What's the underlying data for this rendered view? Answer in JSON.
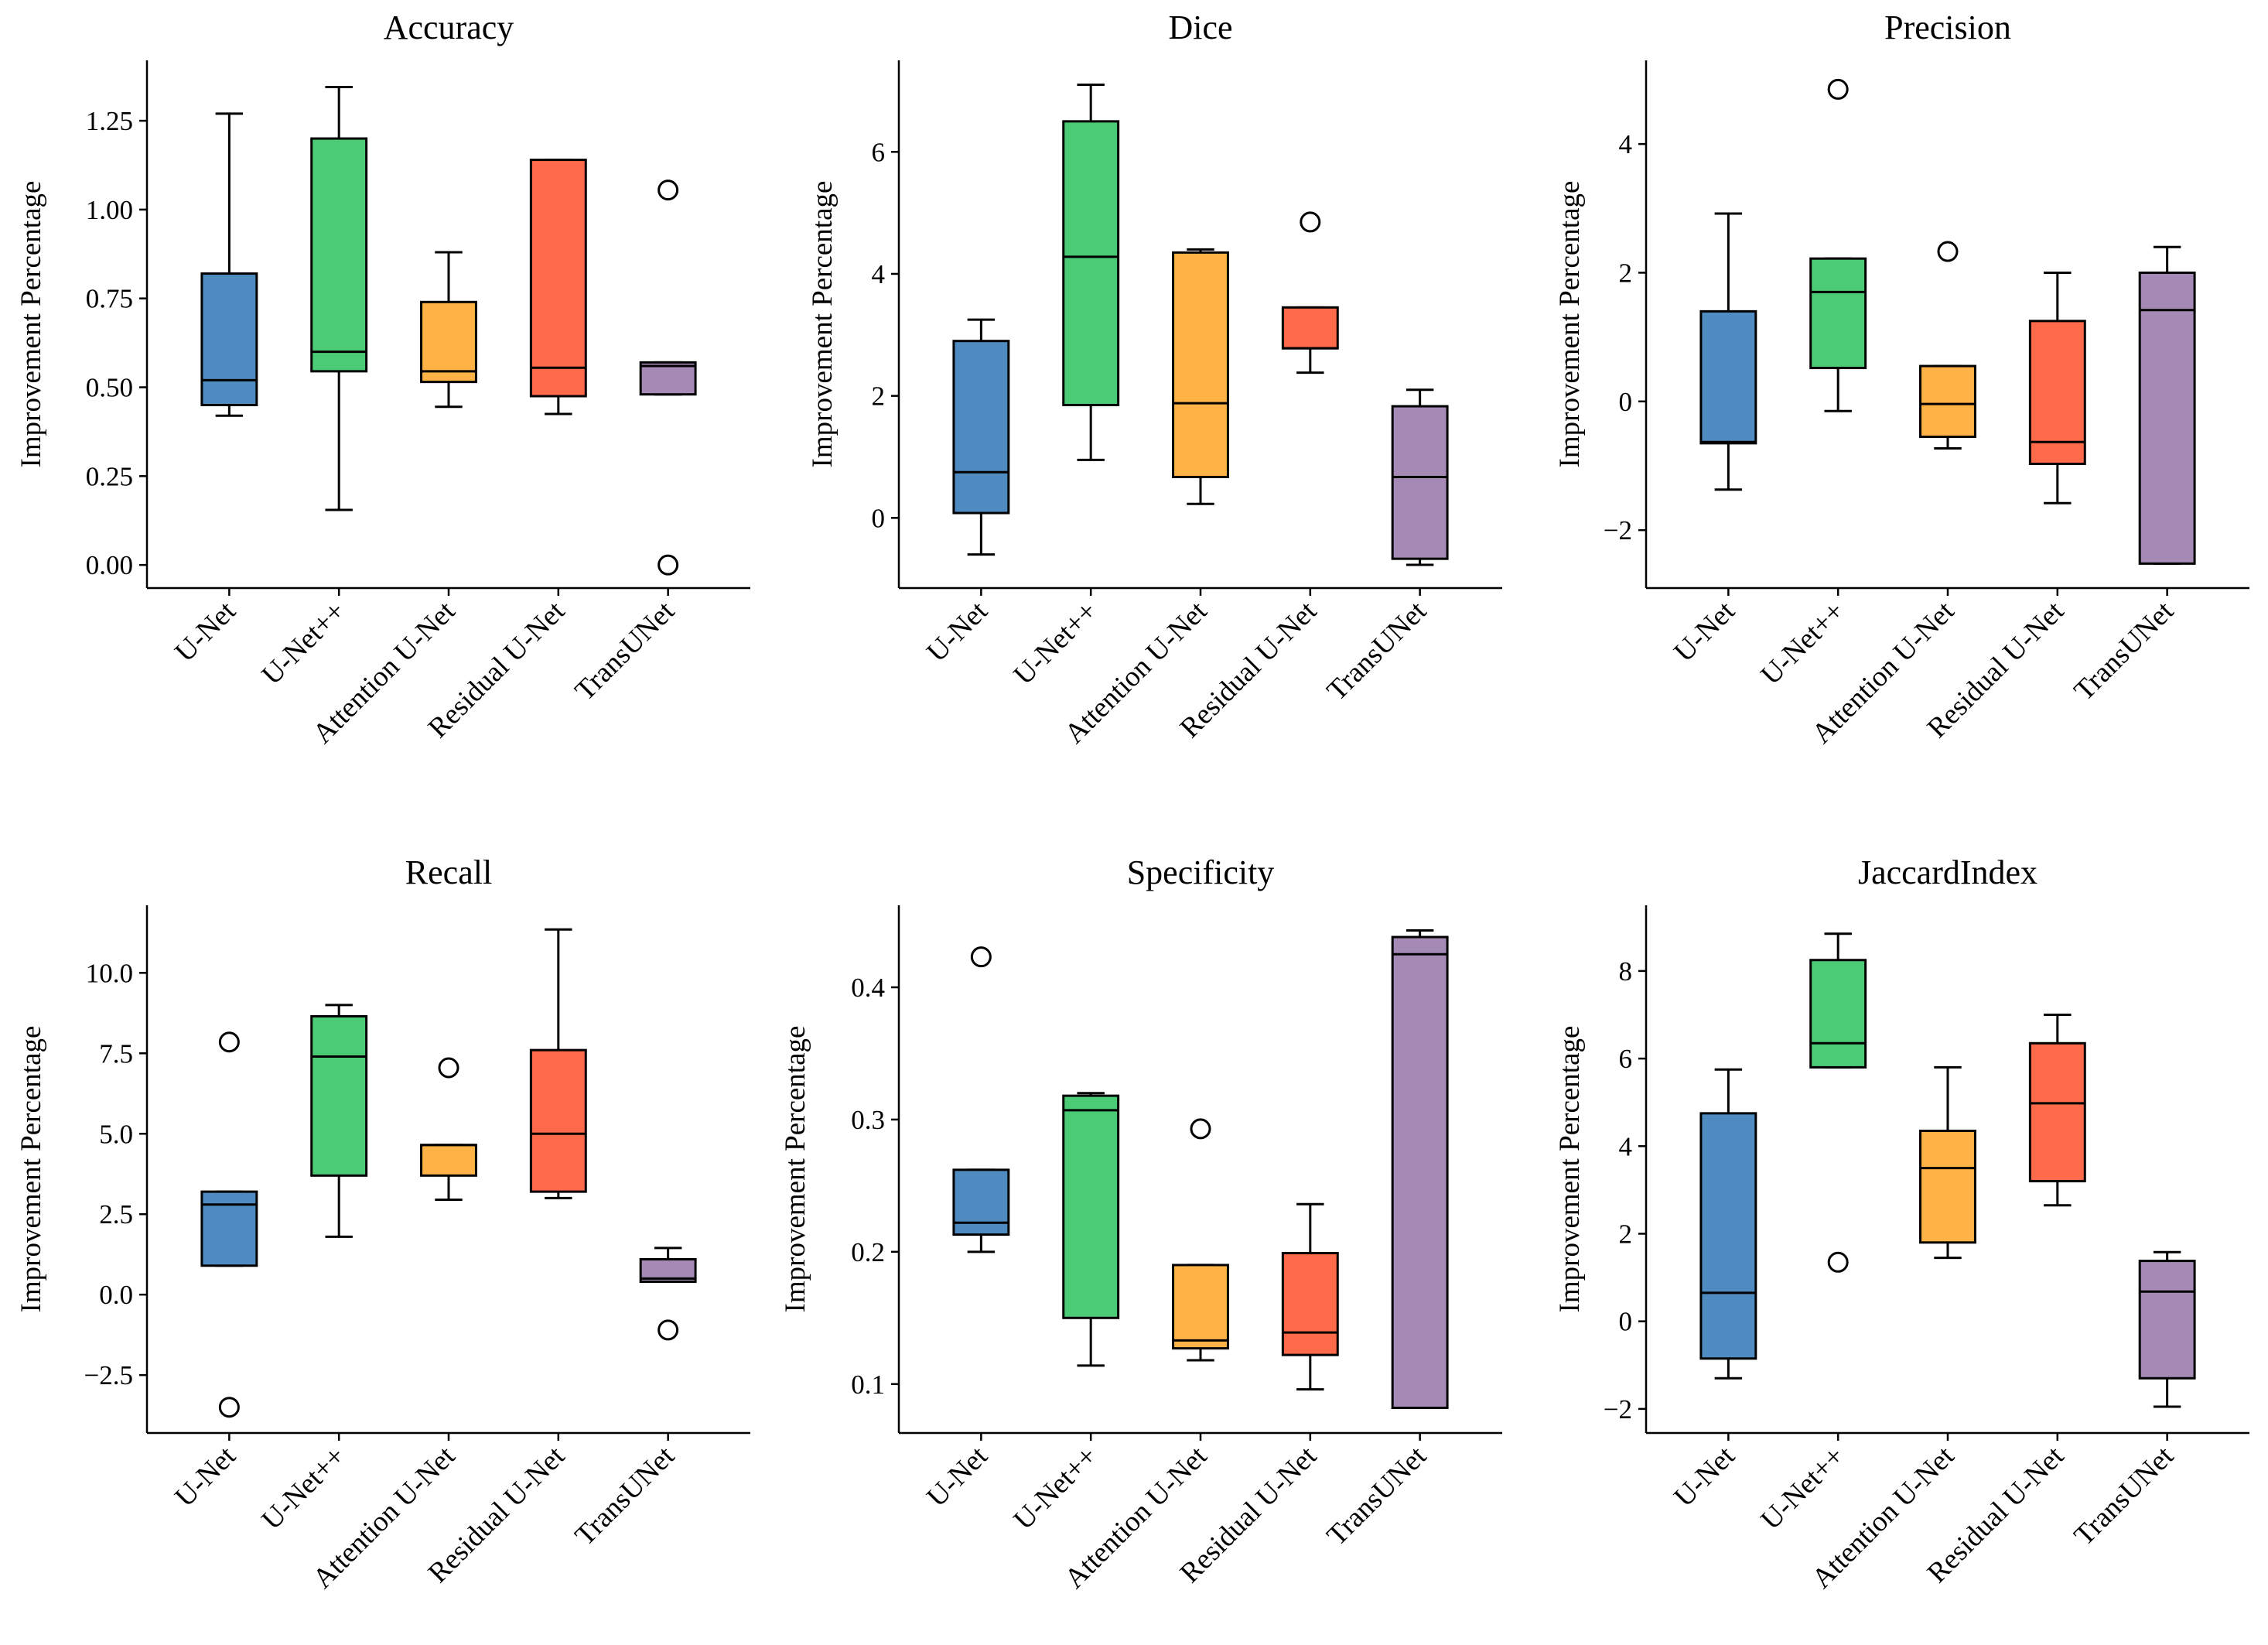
{
  "figure": {
    "ylabel": "Improvement Percentage",
    "box_colors": [
      "#4f8ac1",
      "#4ccb77",
      "#ffb347",
      "#ff6b4a",
      "#a58ab5"
    ],
    "line_color": "#000000"
  },
  "chart_data": [
    {
      "type": "boxplot",
      "title": "Accuracy",
      "ylabel": "Improvement Percentage",
      "categories": [
        "U-Net",
        "U-Net++",
        "Attention U-Net",
        "Residual U-Net",
        "TransUNet"
      ],
      "ylim": [
        -0.065,
        1.42
      ],
      "yticks": [
        0.0,
        0.25,
        0.5,
        0.75,
        1.0,
        1.25
      ],
      "ytick_labels": [
        "0.00",
        "0.25",
        "0.50",
        "0.75",
        "1.00",
        "1.25"
      ],
      "boxes": [
        {
          "whisker_low": 0.42,
          "q1": 0.45,
          "median": 0.52,
          "q3": 0.82,
          "whisker_high": 1.27,
          "outliers": []
        },
        {
          "whisker_low": 0.155,
          "q1": 0.545,
          "median": 0.6,
          "q3": 1.2,
          "whisker_high": 1.345,
          "outliers": []
        },
        {
          "whisker_low": 0.445,
          "q1": 0.515,
          "median": 0.545,
          "q3": 0.74,
          "whisker_high": 0.88,
          "outliers": []
        },
        {
          "whisker_low": 0.425,
          "q1": 0.475,
          "median": 0.555,
          "q3": 1.14,
          "whisker_high": 1.14,
          "outliers": []
        },
        {
          "whisker_low": 0.48,
          "q1": 0.48,
          "median": 0.56,
          "q3": 0.57,
          "whisker_high": 0.57,
          "outliers": [
            1.055,
            0.0
          ]
        }
      ]
    },
    {
      "type": "boxplot",
      "title": "Dice",
      "ylabel": "Improvement Percentage",
      "categories": [
        "U-Net",
        "U-Net++",
        "Attention U-Net",
        "Residual U-Net",
        "TransUNet"
      ],
      "ylim": [
        -1.15,
        7.5
      ],
      "yticks": [
        0,
        2,
        4,
        6
      ],
      "ytick_labels": [
        "0",
        "2",
        "4",
        "6"
      ],
      "boxes": [
        {
          "whisker_low": -0.6,
          "q1": 0.08,
          "median": 0.75,
          "q3": 2.9,
          "whisker_high": 3.25,
          "outliers": []
        },
        {
          "whisker_low": 0.95,
          "q1": 1.85,
          "median": 4.28,
          "q3": 6.5,
          "whisker_high": 7.1,
          "outliers": []
        },
        {
          "whisker_low": 0.23,
          "q1": 0.67,
          "median": 1.88,
          "q3": 4.35,
          "whisker_high": 4.4,
          "outliers": []
        },
        {
          "whisker_low": 2.38,
          "q1": 2.78,
          "median": 2.78,
          "q3": 3.45,
          "whisker_high": 3.45,
          "outliers": [
            4.85
          ]
        },
        {
          "whisker_low": -0.77,
          "q1": -0.67,
          "median": 0.67,
          "q3": 1.83,
          "whisker_high": 2.1,
          "outliers": []
        }
      ]
    },
    {
      "type": "boxplot",
      "title": "Precision",
      "ylabel": "Improvement Percentage",
      "categories": [
        "U-Net",
        "U-Net++",
        "Attention U-Net",
        "Residual U-Net",
        "TransUNet"
      ],
      "ylim": [
        -2.9,
        5.3
      ],
      "yticks": [
        -2,
        0,
        2,
        4
      ],
      "ytick_labels": [
        "−2",
        "0",
        "2",
        "4"
      ],
      "boxes": [
        {
          "whisker_low": -1.37,
          "q1": -0.65,
          "median": -0.63,
          "q3": 1.4,
          "whisker_high": 2.92,
          "outliers": []
        },
        {
          "whisker_low": -0.15,
          "q1": 0.52,
          "median": 1.7,
          "q3": 2.22,
          "whisker_high": 2.22,
          "outliers": [
            4.85
          ]
        },
        {
          "whisker_low": -0.73,
          "q1": -0.55,
          "median": -0.04,
          "q3": 0.55,
          "whisker_high": 0.55,
          "outliers": [
            2.33
          ]
        },
        {
          "whisker_low": -1.58,
          "q1": -0.97,
          "median": -0.63,
          "q3": 1.25,
          "whisker_high": 2.0,
          "outliers": []
        },
        {
          "whisker_low": -2.52,
          "q1": -2.52,
          "median": 1.42,
          "q3": 2.0,
          "whisker_high": 2.4,
          "outliers": []
        }
      ]
    },
    {
      "type": "boxplot",
      "title": "Recall",
      "ylabel": "Improvement Percentage",
      "categories": [
        "U-Net",
        "U-Net++",
        "Attention U-Net",
        "Residual U-Net",
        "TransUNet"
      ],
      "ylim": [
        -4.3,
        12.1
      ],
      "yticks": [
        -2.5,
        0.0,
        2.5,
        5.0,
        7.5,
        10.0
      ],
      "ytick_labels": [
        "−2.5",
        "0.0",
        "2.5",
        "5.0",
        "7.5",
        "10.0"
      ],
      "boxes": [
        {
          "whisker_low": 0.9,
          "q1": 0.9,
          "median": 2.8,
          "q3": 3.2,
          "whisker_high": 3.2,
          "outliers": [
            7.85,
            -3.5
          ]
        },
        {
          "whisker_low": 1.8,
          "q1": 3.7,
          "median": 7.4,
          "q3": 8.65,
          "whisker_high": 9.0,
          "outliers": []
        },
        {
          "whisker_low": 2.95,
          "q1": 3.7,
          "median": 4.65,
          "q3": 4.65,
          "whisker_high": 4.65,
          "outliers": [
            7.05
          ]
        },
        {
          "whisker_low": 3.0,
          "q1": 3.2,
          "median": 5.0,
          "q3": 7.6,
          "whisker_high": 11.35,
          "outliers": []
        },
        {
          "whisker_low": 0.4,
          "q1": 0.4,
          "median": 0.5,
          "q3": 1.1,
          "whisker_high": 1.45,
          "outliers": [
            -1.1
          ]
        }
      ]
    },
    {
      "type": "boxplot",
      "title": "Specificity",
      "ylabel": "Improvement Percentage",
      "categories": [
        "U-Net",
        "U-Net++",
        "Attention U-Net",
        "Residual U-Net",
        "TransUNet"
      ],
      "ylim": [
        0.063,
        0.462
      ],
      "yticks": [
        0.1,
        0.2,
        0.3,
        0.4
      ],
      "ytick_labels": [
        "0.1",
        "0.2",
        "0.3",
        "0.4"
      ],
      "boxes": [
        {
          "whisker_low": 0.2,
          "q1": 0.213,
          "median": 0.222,
          "q3": 0.262,
          "whisker_high": 0.262,
          "outliers": [
            0.423
          ]
        },
        {
          "whisker_low": 0.114,
          "q1": 0.15,
          "median": 0.307,
          "q3": 0.318,
          "whisker_high": 0.32,
          "outliers": []
        },
        {
          "whisker_low": 0.118,
          "q1": 0.127,
          "median": 0.133,
          "q3": 0.19,
          "whisker_high": 0.19,
          "outliers": [
            0.293
          ]
        },
        {
          "whisker_low": 0.096,
          "q1": 0.122,
          "median": 0.139,
          "q3": 0.199,
          "whisker_high": 0.236,
          "outliers": []
        },
        {
          "whisker_low": 0.082,
          "q1": 0.082,
          "median": 0.425,
          "q3": 0.438,
          "whisker_high": 0.443,
          "outliers": []
        }
      ]
    },
    {
      "type": "boxplot",
      "title": "JaccardIndex",
      "ylabel": "Improvement Percentage",
      "categories": [
        "U-Net",
        "U-Net++",
        "Attention U-Net",
        "Residual U-Net",
        "TransUNet"
      ],
      "ylim": [
        -2.55,
        9.5
      ],
      "yticks": [
        -2,
        0,
        2,
        4,
        6,
        8
      ],
      "ytick_labels": [
        "−2",
        "0",
        "2",
        "4",
        "6",
        "8"
      ],
      "boxes": [
        {
          "whisker_low": -1.3,
          "q1": -0.85,
          "median": 0.65,
          "q3": 4.75,
          "whisker_high": 5.75,
          "outliers": []
        },
        {
          "whisker_low": 5.8,
          "q1": 5.8,
          "median": 6.35,
          "q3": 8.25,
          "whisker_high": 8.85,
          "outliers": [
            1.35
          ]
        },
        {
          "whisker_low": 1.45,
          "q1": 1.8,
          "median": 3.5,
          "q3": 4.35,
          "whisker_high": 5.8,
          "outliers": []
        },
        {
          "whisker_low": 2.65,
          "q1": 3.2,
          "median": 4.98,
          "q3": 6.35,
          "whisker_high": 7.0,
          "outliers": []
        },
        {
          "whisker_low": -1.95,
          "q1": -1.3,
          "median": 0.68,
          "q3": 1.38,
          "whisker_high": 1.58,
          "outliers": []
        }
      ]
    }
  ]
}
